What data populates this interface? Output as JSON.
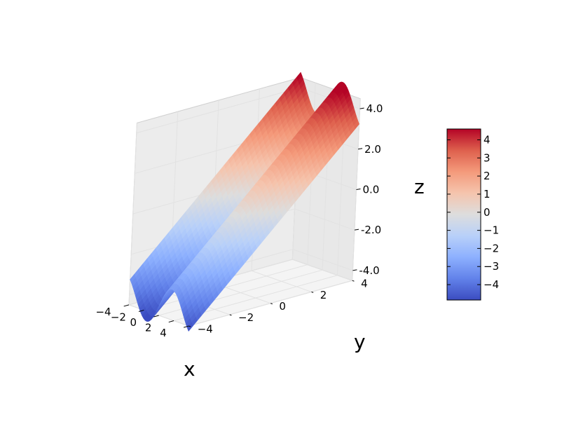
{
  "chart_data": {
    "type": "surface",
    "surface_function": "z = y + sin(x)",
    "x_range": [
      -4,
      4
    ],
    "y_range": [
      -4,
      4
    ],
    "z_range": [
      -4,
      4
    ],
    "grid_resolution": [
      40,
      40
    ],
    "colormap": "coolwarm",
    "xlabel": "x",
    "ylabel": "y",
    "zlabel": "z",
    "x_ticks": [
      -4,
      -2,
      0,
      2,
      4
    ],
    "x_tick_labels": [
      "−4",
      "−2",
      "0",
      "2",
      "4"
    ],
    "y_ticks": [
      -4,
      -2,
      0,
      2,
      4
    ],
    "y_tick_labels": [
      "−4",
      "−2",
      "0",
      "2",
      "4"
    ],
    "z_ticks": [
      -4,
      -2,
      0,
      2,
      4
    ],
    "z_tick_labels": [
      "-4.0",
      "-2.0",
      "0.0",
      "2.0",
      "4.0"
    ],
    "colorbar": {
      "range": [
        -4.85,
        4.6
      ],
      "ticks": [
        -4,
        -3,
        -2,
        -1,
        0,
        1,
        2,
        3,
        4
      ],
      "tick_labels": [
        "−4",
        "−3",
        "−2",
        "−1",
        "0",
        "1",
        "2",
        "3",
        "4"
      ]
    },
    "grid": true
  }
}
